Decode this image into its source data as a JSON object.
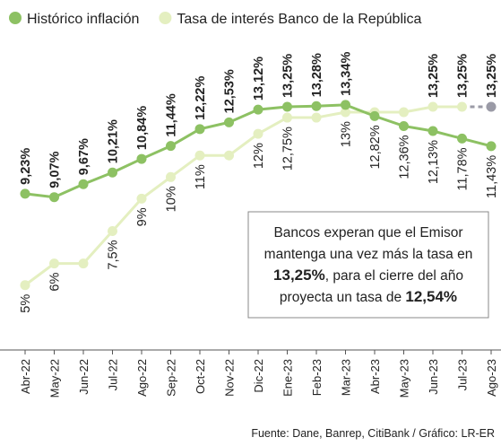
{
  "chart_data": {
    "type": "line",
    "categories": [
      "Abr-22",
      "May-22",
      "Jun-22",
      "Jul-22",
      "Ago-22",
      "Sep-22",
      "Oct-22",
      "Nov-22",
      "Dic-22",
      "Ene-23",
      "Feb-23",
      "Mar-23",
      "Abr-23",
      "May-23",
      "Jun-23",
      "Jul-23",
      "Ago-23"
    ],
    "series": [
      {
        "name": "Histórico inflación",
        "color": "#8dc163",
        "values": [
          9.23,
          9.07,
          9.67,
          10.21,
          10.84,
          11.44,
          12.22,
          12.53,
          13.12,
          13.25,
          13.28,
          13.34,
          12.82,
          12.36,
          12.13,
          11.78,
          11.43
        ],
        "value_labels": [
          "9,23%",
          "9,07%",
          "9,67%",
          "10,21%",
          "10,84%",
          "11,44%",
          "12,22%",
          "12,53%",
          "13,12%",
          "13,25%",
          "13,28%",
          "13,34%",
          "12,82%",
          "12,36%",
          "12,13%",
          "11,78%",
          "11,43%"
        ]
      },
      {
        "name": "Tasa de interés Banco de la República",
        "color": "#e4efc0",
        "values": [
          5,
          6,
          6,
          7.5,
          9,
          10,
          11,
          11,
          12,
          12.75,
          12.75,
          13,
          13,
          13,
          13.25,
          13.25,
          13.25
        ],
        "value_labels": [
          "5%",
          "6%",
          null,
          "7,5%",
          "9%",
          "10%",
          "11%",
          null,
          "12%",
          "12,75%",
          null,
          "13%",
          null,
          null,
          "13,25%",
          "13,25%",
          "13,25%"
        ],
        "dashed_from_index": 15,
        "dashed_color": "#9a9aa6"
      }
    ],
    "ylim": [
      2,
      15.7
    ],
    "annotation": [
      [
        {
          "text": "Bancos experan que el Emisor",
          "bold": false
        }
      ],
      [
        {
          "text": "mantenga una vez más la tasa en",
          "bold": false
        }
      ],
      [
        {
          "text": "13,25%",
          "bold": true
        },
        {
          "text": ", para el cierre del año",
          "bold": false
        }
      ],
      [
        {
          "text": "proyecta un tasa de ",
          "bold": false
        },
        {
          "text": "12,54%",
          "bold": true
        }
      ]
    ],
    "source": "Fuente: Dane, Banrep, CitiBank / Gráfico: LR-ER"
  }
}
